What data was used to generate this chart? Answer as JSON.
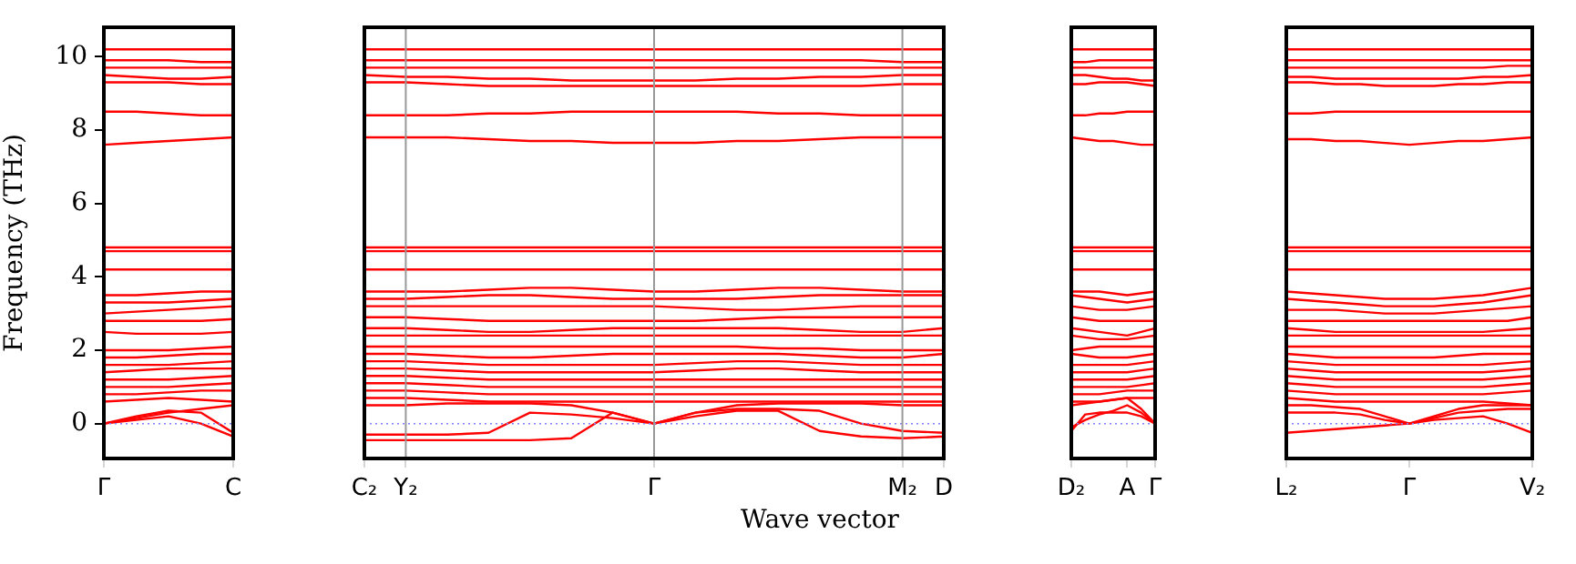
{
  "chart_data": [
    {
      "type": "line",
      "ylabel": "Frequency (THz)",
      "categories": [
        "Γ",
        null,
        null,
        null,
        "C"
      ],
      "ylim": [
        -0.95,
        10.8
      ],
      "yticks": [
        0,
        2,
        4,
        6,
        8,
        10
      ],
      "ref_lines": [
        {
          "axis": "y",
          "value": 0,
          "color": "#8080ff",
          "line_style": "dotted"
        }
      ],
      "series": [
        {
          "color": "#ff0000",
          "values": [
            10.2,
            10.2,
            10.2,
            10.2,
            10.2
          ]
        },
        {
          "color": "#ff0000",
          "values": [
            9.9,
            9.9,
            9.9,
            9.85,
            9.85
          ]
        },
        {
          "color": "#ff0000",
          "values": [
            9.7,
            9.7,
            9.7,
            9.7,
            9.7
          ]
        },
        {
          "color": "#ff0000",
          "values": [
            9.5,
            9.45,
            9.4,
            9.4,
            9.45
          ]
        },
        {
          "color": "#ff0000",
          "values": [
            9.3,
            9.3,
            9.3,
            9.25,
            9.25
          ]
        },
        {
          "color": "#ff0000",
          "values": [
            8.5,
            8.5,
            8.45,
            8.4,
            8.4
          ]
        },
        {
          "color": "#ff0000",
          "values": [
            7.6,
            7.65,
            7.7,
            7.75,
            7.8
          ]
        },
        {
          "color": "#ff0000",
          "values": [
            4.8,
            4.8,
            4.8,
            4.8,
            4.8
          ]
        },
        {
          "color": "#ff0000",
          "values": [
            4.7,
            4.7,
            4.7,
            4.7,
            4.7
          ]
        },
        {
          "color": "#ff0000",
          "values": [
            4.2,
            4.2,
            4.2,
            4.2,
            4.2
          ]
        },
        {
          "color": "#ff0000",
          "values": [
            3.5,
            3.5,
            3.55,
            3.6,
            3.6
          ]
        },
        {
          "color": "#ff0000",
          "values": [
            3.3,
            3.3,
            3.3,
            3.35,
            3.4
          ]
        },
        {
          "color": "#ff0000",
          "values": [
            3.0,
            3.05,
            3.1,
            3.15,
            3.2
          ]
        },
        {
          "color": "#ff0000",
          "values": [
            2.8,
            2.8,
            2.8,
            2.8,
            2.85
          ]
        },
        {
          "color": "#ff0000",
          "values": [
            2.5,
            2.45,
            2.45,
            2.45,
            2.5
          ]
        },
        {
          "color": "#ff0000",
          "values": [
            2.0,
            2.0,
            2.0,
            2.05,
            2.1
          ]
        },
        {
          "color": "#ff0000",
          "values": [
            1.8,
            1.8,
            1.85,
            1.9,
            1.9
          ]
        },
        {
          "color": "#ff0000",
          "values": [
            1.6,
            1.6,
            1.6,
            1.65,
            1.7
          ]
        },
        {
          "color": "#ff0000",
          "values": [
            1.4,
            1.45,
            1.5,
            1.5,
            1.5
          ]
        },
        {
          "color": "#ff0000",
          "values": [
            1.2,
            1.2,
            1.2,
            1.25,
            1.3
          ]
        },
        {
          "color": "#ff0000",
          "values": [
            1.0,
            1.0,
            1.0,
            1.05,
            1.1
          ]
        },
        {
          "color": "#ff0000",
          "values": [
            0.8,
            0.8,
            0.85,
            0.9,
            0.9
          ]
        },
        {
          "color": "#ff0000",
          "values": [
            0.6,
            0.65,
            0.7,
            0.65,
            0.6
          ]
        },
        {
          "color": "#ff0000",
          "values": [
            0,
            0.2,
            0.35,
            0.3,
            -0.25
          ]
        },
        {
          "color": "#ff0000",
          "values": [
            0,
            0.1,
            0.2,
            0.0,
            -0.35
          ]
        },
        {
          "color": "#ff0000",
          "values": [
            0,
            0.15,
            0.3,
            0.4,
            0.5
          ]
        }
      ]
    },
    {
      "type": "line",
      "xlabel": "Wave vector",
      "tick_labels": "x",
      "categories": [
        "C₂",
        "Y₂",
        null,
        null,
        null,
        null,
        null,
        "Γ",
        null,
        null,
        null,
        null,
        null,
        "M₂",
        "D"
      ],
      "ylim": [
        -0.95,
        10.8
      ],
      "yticks": [
        0,
        2,
        4,
        6,
        8,
        10
      ],
      "grid": "x",
      "ref_lines": [
        {
          "axis": "y",
          "value": 0,
          "color": "#8080ff",
          "line_style": "dotted"
        }
      ],
      "series": [
        {
          "color": "#ff0000",
          "values": [
            10.2,
            10.2,
            10.2,
            10.2,
            10.2,
            10.2,
            10.2,
            10.2,
            10.2,
            10.2,
            10.2,
            10.2,
            10.2,
            10.2,
            10.2
          ]
        },
        {
          "color": "#ff0000",
          "values": [
            9.9,
            9.9,
            9.9,
            9.9,
            9.9,
            9.9,
            9.9,
            9.9,
            9.9,
            9.9,
            9.9,
            9.9,
            9.9,
            9.85,
            9.85
          ]
        },
        {
          "color": "#ff0000",
          "values": [
            9.7,
            9.7,
            9.7,
            9.7,
            9.7,
            9.7,
            9.7,
            9.7,
            9.7,
            9.7,
            9.7,
            9.7,
            9.7,
            9.7,
            9.7
          ]
        },
        {
          "color": "#ff0000",
          "values": [
            9.5,
            9.45,
            9.45,
            9.4,
            9.4,
            9.35,
            9.35,
            9.35,
            9.35,
            9.4,
            9.4,
            9.45,
            9.45,
            9.5,
            9.5
          ]
        },
        {
          "color": "#ff0000",
          "values": [
            9.3,
            9.3,
            9.25,
            9.2,
            9.2,
            9.2,
            9.2,
            9.2,
            9.2,
            9.2,
            9.2,
            9.2,
            9.2,
            9.25,
            9.25
          ]
        },
        {
          "color": "#ff0000",
          "values": [
            8.4,
            8.4,
            8.4,
            8.45,
            8.45,
            8.5,
            8.5,
            8.5,
            8.5,
            8.5,
            8.45,
            8.45,
            8.4,
            8.4,
            8.4
          ]
        },
        {
          "color": "#ff0000",
          "values": [
            7.8,
            7.8,
            7.8,
            7.75,
            7.7,
            7.7,
            7.65,
            7.65,
            7.65,
            7.7,
            7.7,
            7.75,
            7.8,
            7.8,
            7.8
          ]
        },
        {
          "color": "#ff0000",
          "values": [
            4.8,
            4.8,
            4.8,
            4.8,
            4.8,
            4.8,
            4.8,
            4.8,
            4.8,
            4.8,
            4.8,
            4.8,
            4.8,
            4.8,
            4.8
          ]
        },
        {
          "color": "#ff0000",
          "values": [
            4.7,
            4.7,
            4.7,
            4.7,
            4.7,
            4.7,
            4.7,
            4.7,
            4.7,
            4.7,
            4.7,
            4.7,
            4.7,
            4.7,
            4.7
          ]
        },
        {
          "color": "#ff0000",
          "values": [
            4.2,
            4.2,
            4.2,
            4.2,
            4.2,
            4.2,
            4.2,
            4.2,
            4.2,
            4.2,
            4.2,
            4.2,
            4.2,
            4.2,
            4.2
          ]
        },
        {
          "color": "#ff0000",
          "values": [
            3.6,
            3.6,
            3.6,
            3.65,
            3.7,
            3.7,
            3.65,
            3.6,
            3.6,
            3.65,
            3.7,
            3.7,
            3.65,
            3.6,
            3.6
          ]
        },
        {
          "color": "#ff0000",
          "values": [
            3.4,
            3.4,
            3.45,
            3.5,
            3.5,
            3.45,
            3.4,
            3.4,
            3.4,
            3.4,
            3.45,
            3.5,
            3.5,
            3.5,
            3.5
          ]
        },
        {
          "color": "#ff0000",
          "values": [
            3.2,
            3.2,
            3.2,
            3.2,
            3.2,
            3.2,
            3.2,
            3.2,
            3.15,
            3.1,
            3.1,
            3.15,
            3.2,
            3.2,
            3.2
          ]
        },
        {
          "color": "#ff0000",
          "values": [
            2.9,
            2.9,
            2.85,
            2.8,
            2.8,
            2.8,
            2.8,
            2.8,
            2.8,
            2.85,
            2.9,
            2.9,
            2.9,
            2.9,
            2.9
          ]
        },
        {
          "color": "#ff0000",
          "values": [
            2.6,
            2.6,
            2.55,
            2.5,
            2.5,
            2.55,
            2.6,
            2.6,
            2.6,
            2.6,
            2.6,
            2.55,
            2.5,
            2.5,
            2.6
          ]
        },
        {
          "color": "#ff0000",
          "values": [
            2.4,
            2.4,
            2.4,
            2.4,
            2.4,
            2.4,
            2.4,
            2.4,
            2.4,
            2.4,
            2.4,
            2.4,
            2.4,
            2.4,
            2.4
          ]
        },
        {
          "color": "#ff0000",
          "values": [
            2.1,
            2.1,
            2.1,
            2.1,
            2.1,
            2.1,
            2.1,
            2.1,
            2.1,
            2.1,
            2.05,
            2.05,
            2.0,
            2.0,
            2.0
          ]
        },
        {
          "color": "#ff0000",
          "values": [
            1.9,
            1.9,
            1.85,
            1.8,
            1.8,
            1.85,
            1.9,
            1.9,
            1.9,
            1.9,
            1.9,
            1.85,
            1.8,
            1.8,
            1.9
          ]
        },
        {
          "color": "#ff0000",
          "values": [
            1.7,
            1.7,
            1.65,
            1.6,
            1.6,
            1.6,
            1.6,
            1.6,
            1.65,
            1.7,
            1.7,
            1.65,
            1.6,
            1.6,
            1.6
          ]
        },
        {
          "color": "#ff0000",
          "values": [
            1.5,
            1.5,
            1.45,
            1.4,
            1.4,
            1.4,
            1.4,
            1.4,
            1.45,
            1.5,
            1.5,
            1.45,
            1.4,
            1.4,
            1.4
          ]
        },
        {
          "color": "#ff0000",
          "values": [
            1.3,
            1.3,
            1.25,
            1.2,
            1.2,
            1.2,
            1.2,
            1.2,
            1.2,
            1.2,
            1.2,
            1.2,
            1.2,
            1.2,
            1.2
          ]
        },
        {
          "color": "#ff0000",
          "values": [
            1.1,
            1.1,
            1.05,
            1.0,
            1.0,
            1.0,
            1.0,
            1.0,
            1.0,
            1.0,
            1.0,
            1.0,
            1.0,
            1.0,
            1.0
          ]
        },
        {
          "color": "#ff0000",
          "values": [
            0.9,
            0.9,
            0.85,
            0.8,
            0.8,
            0.8,
            0.8,
            0.8,
            0.8,
            0.8,
            0.8,
            0.8,
            0.8,
            0.8,
            0.8
          ]
        },
        {
          "color": "#ff0000",
          "values": [
            0.7,
            0.7,
            0.65,
            0.6,
            0.6,
            0.6,
            0.6,
            0.6,
            0.6,
            0.6,
            0.6,
            0.6,
            0.6,
            0.6,
            0.6
          ]
        },
        {
          "color": "#ff0000",
          "values": [
            -0.3,
            -0.3,
            -0.3,
            -0.25,
            0.3,
            0.25,
            0.15,
            0,
            0.2,
            0.35,
            0.35,
            -0.2,
            -0.35,
            -0.4,
            -0.35
          ]
        },
        {
          "color": "#ff0000",
          "values": [
            -0.45,
            -0.45,
            -0.45,
            -0.45,
            -0.45,
            -0.4,
            0.3,
            0,
            0.3,
            0.4,
            0.4,
            0.35,
            0,
            -0.2,
            -0.25
          ]
        },
        {
          "color": "#ff0000",
          "values": [
            0.5,
            0.5,
            0.55,
            0.55,
            0.55,
            0.5,
            0.3,
            0,
            0.3,
            0.5,
            0.55,
            0.55,
            0.55,
            0.5,
            0.5
          ]
        }
      ]
    },
    {
      "type": "line",
      "tick_labels": "x",
      "categories": [
        "D₂",
        null,
        null,
        null,
        "A",
        null,
        "Γ"
      ],
      "ylim": [
        -0.95,
        10.8
      ],
      "yticks": [
        0,
        2,
        4,
        6,
        8,
        10
      ],
      "ref_lines": [
        {
          "axis": "y",
          "value": 0,
          "color": "#8080ff",
          "line_style": "dotted"
        }
      ],
      "series": [
        {
          "color": "#ff0000",
          "values": [
            10.2,
            10.2,
            10.2,
            10.2,
            10.2,
            10.2,
            10.2
          ]
        },
        {
          "color": "#ff0000",
          "values": [
            9.85,
            9.85,
            9.9,
            9.9,
            9.9,
            9.9,
            9.9
          ]
        },
        {
          "color": "#ff0000",
          "values": [
            9.7,
            9.7,
            9.7,
            9.7,
            9.7,
            9.7,
            9.7
          ]
        },
        {
          "color": "#ff0000",
          "values": [
            9.5,
            9.5,
            9.45,
            9.4,
            9.4,
            9.35,
            9.35
          ]
        },
        {
          "color": "#ff0000",
          "values": [
            9.25,
            9.25,
            9.3,
            9.3,
            9.3,
            9.25,
            9.2
          ]
        },
        {
          "color": "#ff0000",
          "values": [
            8.4,
            8.4,
            8.45,
            8.45,
            8.5,
            8.5,
            8.5
          ]
        },
        {
          "color": "#ff0000",
          "values": [
            7.8,
            7.75,
            7.7,
            7.7,
            7.65,
            7.6,
            7.6
          ]
        },
        {
          "color": "#ff0000",
          "values": [
            4.8,
            4.8,
            4.8,
            4.8,
            4.8,
            4.8,
            4.8
          ]
        },
        {
          "color": "#ff0000",
          "values": [
            4.7,
            4.7,
            4.7,
            4.7,
            4.7,
            4.7,
            4.7
          ]
        },
        {
          "color": "#ff0000",
          "values": [
            4.2,
            4.2,
            4.2,
            4.2,
            4.2,
            4.2,
            4.2
          ]
        },
        {
          "color": "#ff0000",
          "values": [
            3.6,
            3.6,
            3.6,
            3.55,
            3.5,
            3.55,
            3.6
          ]
        },
        {
          "color": "#ff0000",
          "values": [
            3.5,
            3.45,
            3.4,
            3.35,
            3.3,
            3.35,
            3.4
          ]
        },
        {
          "color": "#ff0000",
          "values": [
            3.2,
            3.15,
            3.1,
            3.1,
            3.1,
            3.15,
            3.2
          ]
        },
        {
          "color": "#ff0000",
          "values": [
            2.9,
            2.85,
            2.8,
            2.8,
            2.8,
            2.8,
            2.8
          ]
        },
        {
          "color": "#ff0000",
          "values": [
            2.6,
            2.55,
            2.5,
            2.45,
            2.4,
            2.5,
            2.6
          ]
        },
        {
          "color": "#ff0000",
          "values": [
            2.4,
            2.35,
            2.3,
            2.3,
            2.3,
            2.35,
            2.4
          ]
        },
        {
          "color": "#ff0000",
          "values": [
            2.0,
            2.05,
            2.1,
            2.1,
            2.1,
            2.1,
            2.1
          ]
        },
        {
          "color": "#ff0000",
          "values": [
            1.9,
            1.85,
            1.8,
            1.8,
            1.8,
            1.85,
            1.9
          ]
        },
        {
          "color": "#ff0000",
          "values": [
            1.6,
            1.6,
            1.6,
            1.6,
            1.6,
            1.65,
            1.7
          ]
        },
        {
          "color": "#ff0000",
          "values": [
            1.4,
            1.4,
            1.4,
            1.4,
            1.4,
            1.45,
            1.5
          ]
        },
        {
          "color": "#ff0000",
          "values": [
            1.2,
            1.2,
            1.2,
            1.2,
            1.2,
            1.25,
            1.3
          ]
        },
        {
          "color": "#ff0000",
          "values": [
            1.0,
            1.0,
            1.0,
            1.0,
            1.0,
            1.05,
            1.1
          ]
        },
        {
          "color": "#ff0000",
          "values": [
            0.8,
            0.8,
            0.8,
            0.85,
            0.9,
            0.9,
            0.9
          ]
        },
        {
          "color": "#ff0000",
          "values": [
            0.6,
            0.6,
            0.6,
            0.65,
            0.7,
            0.7,
            0.7
          ]
        },
        {
          "color": "#ff0000",
          "values": [
            -0.2,
            0.25,
            0.3,
            0.3,
            0.3,
            0.2,
            0
          ]
        },
        {
          "color": "#ff0000",
          "values": [
            -0.1,
            0.1,
            0.25,
            0.35,
            0.5,
            0.3,
            0
          ]
        },
        {
          "color": "#ff0000",
          "values": [
            0.5,
            0.55,
            0.6,
            0.65,
            0.7,
            0.4,
            0
          ]
        }
      ]
    },
    {
      "type": "line",
      "tick_labels": "x",
      "categories": [
        "L₂",
        null,
        null,
        null,
        null,
        "Γ",
        null,
        null,
        null,
        null,
        "V₂"
      ],
      "ylim": [
        -0.95,
        10.8
      ],
      "yticks": [
        0,
        2,
        4,
        6,
        8,
        10
      ],
      "ref_lines": [
        {
          "axis": "y",
          "value": 0,
          "color": "#8080ff",
          "line_style": "dotted"
        }
      ],
      "series": [
        {
          "color": "#ff0000",
          "values": [
            10.2,
            10.2,
            10.2,
            10.2,
            10.2,
            10.2,
            10.2,
            10.2,
            10.2,
            10.2,
            10.2
          ]
        },
        {
          "color": "#ff0000",
          "values": [
            9.9,
            9.9,
            9.9,
            9.9,
            9.9,
            9.9,
            9.9,
            9.9,
            9.9,
            9.9,
            9.9
          ]
        },
        {
          "color": "#ff0000",
          "values": [
            9.7,
            9.7,
            9.7,
            9.7,
            9.7,
            9.7,
            9.7,
            9.7,
            9.7,
            9.75,
            9.75
          ]
        },
        {
          "color": "#ff0000",
          "values": [
            9.45,
            9.45,
            9.4,
            9.4,
            9.4,
            9.4,
            9.4,
            9.4,
            9.45,
            9.45,
            9.5
          ]
        },
        {
          "color": "#ff0000",
          "values": [
            9.3,
            9.3,
            9.25,
            9.25,
            9.2,
            9.2,
            9.2,
            9.25,
            9.25,
            9.3,
            9.3
          ]
        },
        {
          "color": "#ff0000",
          "values": [
            8.45,
            8.45,
            8.5,
            8.5,
            8.5,
            8.5,
            8.5,
            8.5,
            8.5,
            8.5,
            8.5
          ]
        },
        {
          "color": "#ff0000",
          "values": [
            7.75,
            7.75,
            7.7,
            7.7,
            7.65,
            7.6,
            7.65,
            7.7,
            7.7,
            7.75,
            7.8
          ]
        },
        {
          "color": "#ff0000",
          "values": [
            4.8,
            4.8,
            4.8,
            4.8,
            4.8,
            4.8,
            4.8,
            4.8,
            4.8,
            4.8,
            4.8
          ]
        },
        {
          "color": "#ff0000",
          "values": [
            4.7,
            4.7,
            4.7,
            4.7,
            4.7,
            4.7,
            4.7,
            4.7,
            4.7,
            4.7,
            4.7
          ]
        },
        {
          "color": "#ff0000",
          "values": [
            4.2,
            4.2,
            4.2,
            4.2,
            4.2,
            4.2,
            4.2,
            4.2,
            4.2,
            4.2,
            4.2
          ]
        },
        {
          "color": "#ff0000",
          "values": [
            3.6,
            3.55,
            3.5,
            3.45,
            3.4,
            3.4,
            3.4,
            3.45,
            3.5,
            3.6,
            3.7
          ]
        },
        {
          "color": "#ff0000",
          "values": [
            3.4,
            3.35,
            3.3,
            3.25,
            3.2,
            3.2,
            3.2,
            3.25,
            3.3,
            3.4,
            3.5
          ]
        },
        {
          "color": "#ff0000",
          "values": [
            3.1,
            3.1,
            3.1,
            3.05,
            3.0,
            3.0,
            3.0,
            3.05,
            3.1,
            3.15,
            3.2
          ]
        },
        {
          "color": "#ff0000",
          "values": [
            2.8,
            2.8,
            2.8,
            2.8,
            2.8,
            2.8,
            2.8,
            2.8,
            2.8,
            2.8,
            2.9
          ]
        },
        {
          "color": "#ff0000",
          "values": [
            2.6,
            2.55,
            2.5,
            2.5,
            2.5,
            2.5,
            2.5,
            2.5,
            2.5,
            2.55,
            2.6
          ]
        },
        {
          "color": "#ff0000",
          "values": [
            2.4,
            2.4,
            2.4,
            2.4,
            2.4,
            2.4,
            2.4,
            2.4,
            2.4,
            2.4,
            2.4
          ]
        },
        {
          "color": "#ff0000",
          "values": [
            2.1,
            2.1,
            2.1,
            2.1,
            2.1,
            2.1,
            2.1,
            2.1,
            2.1,
            2.1,
            2.1
          ]
        },
        {
          "color": "#ff0000",
          "values": [
            1.9,
            1.85,
            1.8,
            1.8,
            1.8,
            1.8,
            1.8,
            1.85,
            1.9,
            1.9,
            1.9
          ]
        },
        {
          "color": "#ff0000",
          "values": [
            1.7,
            1.65,
            1.6,
            1.6,
            1.6,
            1.6,
            1.6,
            1.6,
            1.6,
            1.65,
            1.7
          ]
        },
        {
          "color": "#ff0000",
          "values": [
            1.5,
            1.45,
            1.4,
            1.4,
            1.4,
            1.4,
            1.4,
            1.4,
            1.4,
            1.45,
            1.5
          ]
        },
        {
          "color": "#ff0000",
          "values": [
            1.3,
            1.25,
            1.2,
            1.2,
            1.2,
            1.2,
            1.2,
            1.2,
            1.2,
            1.25,
            1.3
          ]
        },
        {
          "color": "#ff0000",
          "values": [
            1.1,
            1.05,
            1.0,
            1.0,
            1.0,
            1.0,
            1.0,
            1.0,
            1.0,
            1.05,
            1.1
          ]
        },
        {
          "color": "#ff0000",
          "values": [
            0.9,
            0.85,
            0.8,
            0.8,
            0.8,
            0.8,
            0.8,
            0.8,
            0.8,
            0.85,
            0.9
          ]
        },
        {
          "color": "#ff0000",
          "values": [
            0.7,
            0.65,
            0.6,
            0.6,
            0.6,
            0.6,
            0.6,
            0.6,
            0.6,
            0.55,
            0.5
          ]
        },
        {
          "color": "#ff0000",
          "values": [
            -0.25,
            -0.2,
            -0.15,
            -0.1,
            -0.05,
            0,
            0.1,
            0.15,
            0.2,
            0,
            -0.25
          ]
        },
        {
          "color": "#ff0000",
          "values": [
            0.5,
            0.5,
            0.45,
            0.4,
            0.2,
            0,
            0.2,
            0.4,
            0.5,
            0.5,
            0.5
          ]
        },
        {
          "color": "#ff0000",
          "values": [
            0.3,
            0.3,
            0.3,
            0.25,
            0.1,
            0,
            0.15,
            0.3,
            0.35,
            0.4,
            0.4
          ]
        }
      ]
    }
  ]
}
